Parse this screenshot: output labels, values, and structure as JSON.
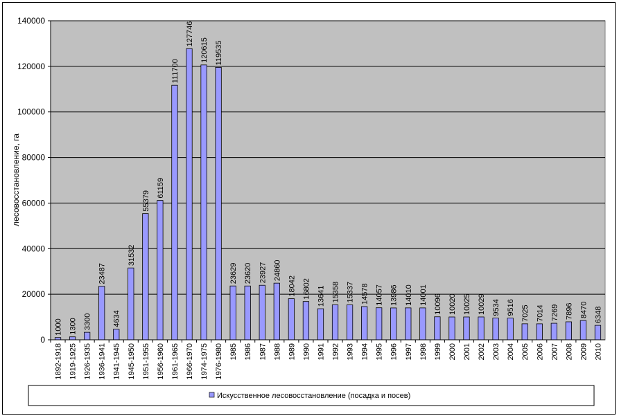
{
  "chart_data": {
    "type": "bar",
    "title": "",
    "xlabel": "",
    "ylabel": "лесовосстановление, га",
    "ylim": [
      0,
      140000
    ],
    "yticks": [
      0,
      20000,
      40000,
      60000,
      80000,
      100000,
      120000,
      140000
    ],
    "grid": true,
    "legend_position": "bottom",
    "colors": {
      "bar": "#9999ff",
      "plot_bg": "#c0c0c0",
      "frame": "#000000"
    },
    "categories": [
      "1892-1918",
      "1919-1925",
      "1926-1935",
      "1936-1941",
      "1941-1945",
      "1945-1950",
      "1951-1955",
      "1956-1960",
      "1961-1965",
      "1966-1970",
      "1974-1975",
      "1976-1980",
      "1985",
      "1986",
      "1987",
      "1988",
      "1989",
      "1990",
      "1991",
      "1992",
      "1993",
      "1994",
      "1995",
      "1996",
      "1997",
      "1998",
      "1999",
      "2000",
      "2001",
      "2002",
      "2003",
      "2004",
      "2005",
      "2006",
      "2007",
      "2008",
      "2009",
      "2010"
    ],
    "series": [
      {
        "name": "Искусственное лесовосстановление (посадка и посев)",
        "values": [
          1000,
          1300,
          3300,
          23487,
          4634,
          31532,
          55379,
          61159,
          111700,
          127746,
          120615,
          119535,
          23629,
          23620,
          23927,
          24860,
          18042,
          16802,
          13641,
          15358,
          15337,
          14578,
          14057,
          13986,
          14010,
          14001,
          10096,
          10020,
          10025,
          10029,
          9534,
          9516,
          7025,
          7014,
          7269,
          7896,
          8470,
          6348
        ]
      }
    ]
  }
}
